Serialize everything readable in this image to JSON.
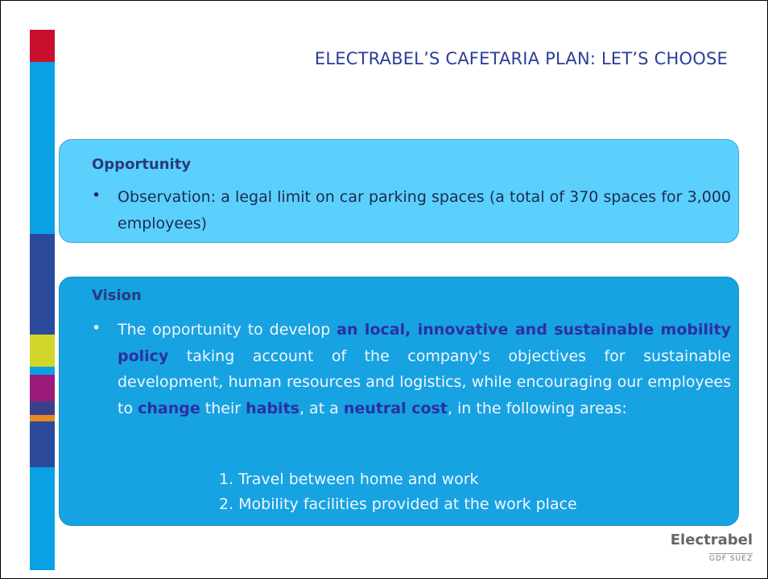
{
  "title": "ELECTRABEL’S CAFETARIA PLAN: LET’S CHOOSE",
  "opportunity": {
    "heading": "Opportunity",
    "bullets": [
      "Observation: a legal limit on car parking spaces (a total of 370 spaces for 3,000 employees)"
    ]
  },
  "vision": {
    "heading": "Vision",
    "runs": [
      {
        "text": "The opportunity to develop ",
        "bold": false
      },
      {
        "text": "an local, innovative and sustainable mobility policy",
        "bold": true
      },
      {
        "text": " taking account of the company's objectives for sustainable development, human resources and logistics, while encouraging our employees to ",
        "bold": false
      },
      {
        "text": "change",
        "bold": true
      },
      {
        "text": " their ",
        "bold": false
      },
      {
        "text": "habits",
        "bold": true
      },
      {
        "text": ", at a ",
        "bold": false
      },
      {
        "text": "neutral cost",
        "bold": true
      },
      {
        "text": ", in the following areas:",
        "bold": false
      }
    ],
    "items": [
      "1. Travel between home and work",
      "2. Mobility facilities provided at the work place"
    ]
  },
  "logo": {
    "name": "Electrabel",
    "sub": "GDF SUEZ"
  }
}
